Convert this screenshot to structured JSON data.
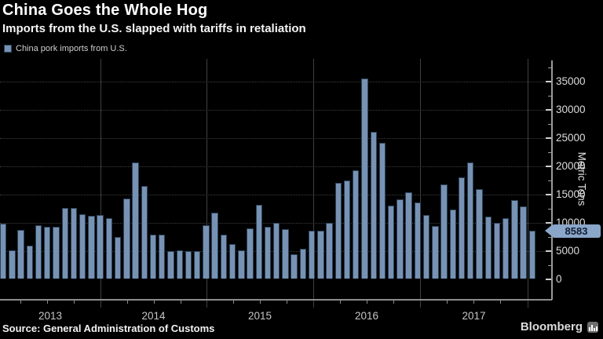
{
  "header": {
    "title": "China Goes the Whole Hog",
    "subtitle": "Imports from the U.S. slapped with tariffs in retaliation"
  },
  "legend": {
    "label": "China pork imports from U.S."
  },
  "y_axis": {
    "title": "Metric Tons",
    "tick_labels": [
      "0",
      "5000",
      "10000",
      "15000",
      "20000",
      "25000",
      "30000",
      "35000"
    ]
  },
  "x_axis": {
    "year_labels": [
      "2013",
      "2014",
      "2015",
      "2016",
      "2017"
    ]
  },
  "callout": {
    "value": "8583"
  },
  "footer": {
    "source": "Source: General Administration of Customs",
    "brand": "Bloomberg"
  },
  "colors": {
    "background": "#000000",
    "bar_fill": "#7792B3",
    "bar_border": "#2C4259",
    "badge_fill": "#8AA6C9",
    "badge_text": "#101E33",
    "gridline": "#3D3D3D",
    "axis": "#9A9A9A",
    "tick_label": "#DCDCDC",
    "title_text": "#FFFFFF"
  },
  "chart_data": {
    "type": "bar",
    "title": "China Goes the Whole Hog",
    "subtitle": "Imports from the U.S. slapped with tariffs in retaliation",
    "series_name": "China pork imports from U.S.",
    "ylabel": "Metric Tons",
    "ylim": [
      0,
      37500
    ],
    "y_tick_step": 5000,
    "y_minor_tick_step": 2500,
    "grid": "horizontal dotted, vertical year dividers",
    "legend_position": "top-left",
    "last_value_callout": 8583,
    "x": [
      "2013-01",
      "2013-02",
      "2013-03",
      "2013-04",
      "2013-05",
      "2013-06",
      "2013-07",
      "2013-08",
      "2013-09",
      "2013-10",
      "2013-11",
      "2013-12",
      "2014-01",
      "2014-02",
      "2014-03",
      "2014-04",
      "2014-05",
      "2014-06",
      "2014-07",
      "2014-08",
      "2014-09",
      "2014-10",
      "2014-11",
      "2014-12",
      "2015-01",
      "2015-02",
      "2015-03",
      "2015-04",
      "2015-05",
      "2015-06",
      "2015-07",
      "2015-08",
      "2015-09",
      "2015-10",
      "2015-11",
      "2015-12",
      "2016-01",
      "2016-02",
      "2016-03",
      "2016-04",
      "2016-05",
      "2016-06",
      "2016-07",
      "2016-08",
      "2016-09",
      "2016-10",
      "2016-11",
      "2016-12",
      "2017-01",
      "2017-02",
      "2017-03",
      "2017-04",
      "2017-05",
      "2017-06",
      "2017-07",
      "2017-08",
      "2017-09",
      "2017-10",
      "2017-11",
      "2017-12",
      "2018-01"
    ],
    "values": [
      9800,
      5100,
      8700,
      5900,
      9500,
      9200,
      9200,
      12600,
      12600,
      11500,
      11200,
      11400,
      10800,
      7400,
      14200,
      20600,
      16500,
      7900,
      7900,
      5000,
      5100,
      4900,
      4900,
      9500,
      11700,
      7800,
      6200,
      5100,
      9000,
      13100,
      9200,
      10000,
      8900,
      4400,
      5300,
      8600,
      8500,
      10000,
      17000,
      17500,
      19300,
      35500,
      26100,
      24100,
      13000,
      14100,
      15400,
      13500,
      11300,
      9400,
      16800,
      12300,
      18000,
      20700,
      15900,
      11000,
      9950,
      10800,
      14000,
      12900,
      8583
    ]
  }
}
